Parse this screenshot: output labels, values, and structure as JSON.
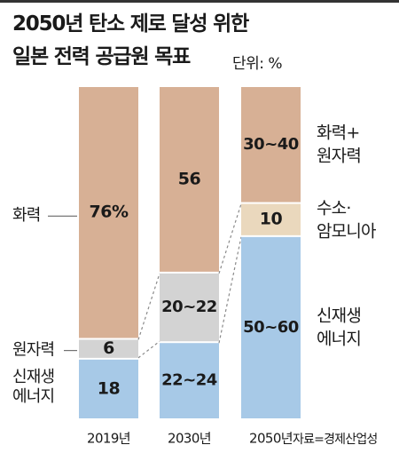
{
  "title_lines": [
    "2050년 탄소 제로 달성 위한",
    "일본 전력 공급원 목표"
  ],
  "unit": "단위: %",
  "source": "자료=경제산업성",
  "colors": {
    "thermal": "#d7b095",
    "ammonia": "#ead8bd",
    "nuclear": "#d3d3d3",
    "renewable": "#a7c9e7"
  },
  "chart_data": {
    "type": "bar",
    "stacked": true,
    "categories": [
      "2019년",
      "2030년",
      "2050년"
    ],
    "ylim": [
      0,
      100
    ],
    "bars": [
      {
        "category": "2019년",
        "segments": [
          {
            "series": "신재생 에너지",
            "value": 18,
            "label": "18",
            "color": "renewable"
          },
          {
            "series": "원자력",
            "value": 6,
            "label": "6",
            "color": "nuclear"
          },
          {
            "series": "화력",
            "value": 76,
            "label": "76%",
            "color": "thermal"
          }
        ]
      },
      {
        "category": "2030년",
        "segments": [
          {
            "series": "신재생 에너지",
            "value": 23,
            "label": "22~24",
            "color": "renewable"
          },
          {
            "series": "원자력",
            "value": 21,
            "label": "20~22",
            "color": "nuclear"
          },
          {
            "series": "화력",
            "value": 56,
            "label": "56",
            "color": "thermal"
          }
        ]
      },
      {
        "category": "2050년",
        "segments": [
          {
            "series": "신재생 에너지",
            "value": 55,
            "label": "50~60",
            "color": "renewable"
          },
          {
            "series": "수소·암모니아",
            "value": 10,
            "label": "10",
            "color": "ammonia"
          },
          {
            "series": "화력+원자력",
            "value": 35,
            "label": "30~40",
            "color": "thermal"
          }
        ]
      }
    ],
    "left_legend": [
      {
        "lines": [
          "화력"
        ],
        "target_bar": 0,
        "target_segment": 2
      },
      {
        "lines": [
          "원자력"
        ],
        "target_bar": 0,
        "target_segment": 1
      },
      {
        "lines": [
          "신재생",
          "에너지"
        ],
        "target_bar": 0,
        "target_segment": 0
      }
    ],
    "right_legend": [
      {
        "lines": [
          "화력+",
          "원자력"
        ],
        "target_segment": 2
      },
      {
        "lines": [
          "수소·",
          "암모니아"
        ],
        "target_segment": 1
      },
      {
        "lines": [
          "신재생",
          "에너지"
        ],
        "target_segment": 0
      }
    ]
  }
}
